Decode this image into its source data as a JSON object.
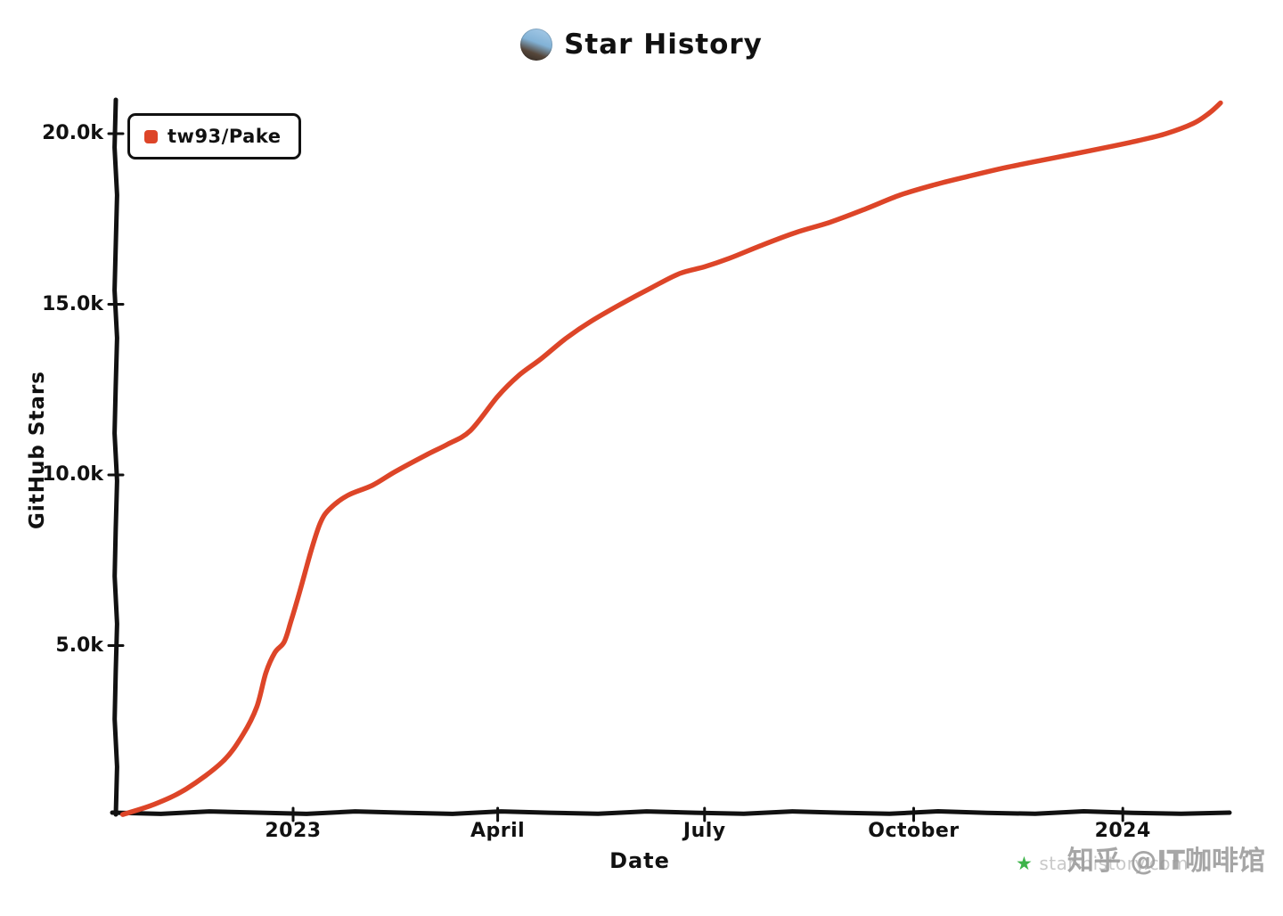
{
  "title": "Star History",
  "legend": {
    "label": "tw93/Pake",
    "color": "#DD4528"
  },
  "axes": {
    "y_label": "GitHub Stars",
    "x_label": "Date"
  },
  "icons": {
    "star_history_logo": "★",
    "avatar": "tw93-profile-photo"
  },
  "watermark": {
    "zhihu": "知乎 @IT咖啡馆",
    "site": "star-history.com"
  },
  "chart_data": {
    "type": "line",
    "title": "Star History",
    "xlabel": "Date",
    "ylabel": "GitHub Stars",
    "x_range": [
      "2022-10-15",
      "2024-02-15"
    ],
    "y_range": [
      0,
      21000
    ],
    "grid": false,
    "legend_position": "top-left",
    "x_ticks": [
      {
        "date": "2023-01-01",
        "label": "2023"
      },
      {
        "date": "2023-04-01",
        "label": "April"
      },
      {
        "date": "2023-07-01",
        "label": "July"
      },
      {
        "date": "2023-10-01",
        "label": "October"
      },
      {
        "date": "2024-01-01",
        "label": "2024"
      }
    ],
    "y_ticks": [
      {
        "value": 5000,
        "label": "5.0k"
      },
      {
        "value": 10000,
        "label": "10.0k"
      },
      {
        "value": 15000,
        "label": "15.0k"
      },
      {
        "value": 20000,
        "label": "20.0k"
      }
    ],
    "series": [
      {
        "name": "tw93/Pake",
        "color": "#DD4528",
        "x": [
          "2022-10-18",
          "2022-11-01",
          "2022-11-15",
          "2022-12-01",
          "2022-12-10",
          "2022-12-16",
          "2022-12-20",
          "2022-12-24",
          "2022-12-28",
          "2022-12-31",
          "2023-01-04",
          "2023-01-09",
          "2023-01-13",
          "2023-01-17",
          "2023-01-25",
          "2023-02-05",
          "2023-02-15",
          "2023-03-01",
          "2023-03-10",
          "2023-03-20",
          "2023-04-01",
          "2023-04-10",
          "2023-04-20",
          "2023-05-01",
          "2023-05-12",
          "2023-05-25",
          "2023-06-08",
          "2023-06-20",
          "2023-07-01",
          "2023-07-12",
          "2023-07-25",
          "2023-08-10",
          "2023-08-25",
          "2023-09-10",
          "2023-09-25",
          "2023-10-10",
          "2023-10-25",
          "2023-11-10",
          "2023-11-25",
          "2023-12-10",
          "2023-12-25",
          "2024-01-08",
          "2024-01-20",
          "2024-02-01",
          "2024-02-08",
          "2024-02-13"
        ],
        "values": [
          50,
          350,
          800,
          1600,
          2400,
          3200,
          4200,
          4800,
          5100,
          5700,
          6600,
          7800,
          8600,
          9000,
          9400,
          9700,
          10100,
          10600,
          10900,
          11300,
          12300,
          12900,
          13400,
          14000,
          14500,
          15000,
          15500,
          15900,
          16100,
          16350,
          16700,
          17100,
          17400,
          17800,
          18200,
          18500,
          18750,
          19000,
          19200,
          19400,
          19600,
          19800,
          20000,
          20300,
          20600,
          20900
        ]
      }
    ]
  }
}
